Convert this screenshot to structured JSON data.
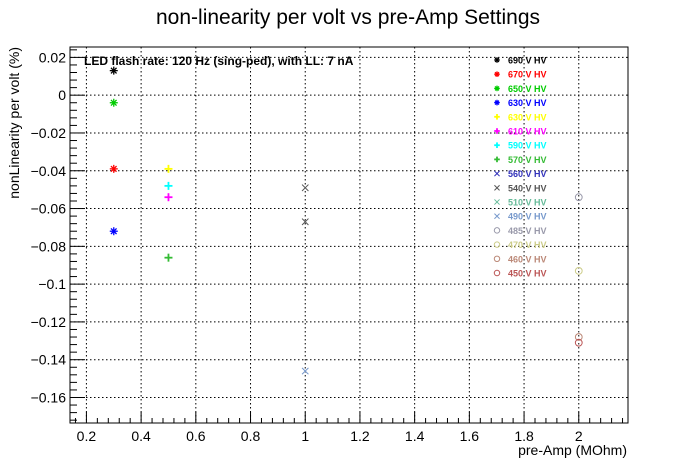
{
  "chart_data": {
    "type": "scatter",
    "title": "non-linearity per volt vs pre-Amp Settings",
    "xlabel": "pre-Amp (MOhm)",
    "ylabel": "nonLinearity per volt (%)",
    "xlim": [
      0.14,
      2.18
    ],
    "ylim": [
      -0.1735,
      0.0255
    ],
    "x_ticks": [
      0.2,
      0.4,
      0.6,
      0.8,
      1,
      1.2,
      1.4,
      1.6,
      1.8,
      2
    ],
    "x_tick_labels": [
      "0.2",
      "0.4",
      "0.6",
      "0.8",
      "1",
      "1.2",
      "1.4",
      "1.6",
      "1.8",
      "2"
    ],
    "y_ticks": [
      0.02,
      0,
      -0.02,
      -0.04,
      -0.06,
      -0.08,
      -0.1,
      -0.12,
      -0.14,
      -0.16
    ],
    "y_tick_labels": [
      "0.02",
      "0",
      "−0.02",
      "−0.04",
      "−0.06",
      "−0.08",
      "−0.1",
      "−0.12",
      "−0.14",
      "−0.16"
    ],
    "grid": true,
    "annotation": "LED flash rate: 120 Hz  (sing-ped), with LL: 7 nA",
    "legend_position": "top-right",
    "series": [
      {
        "name": "690 V HV",
        "color": "#000000",
        "marker": "star",
        "points": [
          [
            0.3,
            0.013
          ]
        ]
      },
      {
        "name": "670 V HV",
        "color": "#ff0000",
        "marker": "star",
        "points": [
          [
            0.3,
            -0.039
          ]
        ]
      },
      {
        "name": "650 V HV",
        "color": "#00cc00",
        "marker": "star",
        "points": [
          [
            0.3,
            -0.004
          ]
        ]
      },
      {
        "name": "630 V HV",
        "color": "#0000ff",
        "marker": "star",
        "points": [
          [
            0.3,
            -0.072
          ]
        ]
      },
      {
        "name": "630 V HV",
        "color": "#ffff00",
        "marker": "plus",
        "points": [
          [
            0.5,
            -0.039
          ]
        ]
      },
      {
        "name": "610 V HV",
        "color": "#ff00ff",
        "marker": "plus",
        "points": [
          [
            0.5,
            -0.054
          ]
        ]
      },
      {
        "name": "590 V HV",
        "color": "#00ffff",
        "marker": "plus",
        "points": [
          [
            0.5,
            -0.048
          ]
        ]
      },
      {
        "name": "570 V HV",
        "color": "#33bb33",
        "marker": "plus",
        "points": [
          [
            0.5,
            -0.086
          ]
        ]
      },
      {
        "name": "560 V HV",
        "color": "#3333bb",
        "marker": "cross",
        "points": []
      },
      {
        "name": "540 V HV",
        "color": "#555555",
        "marker": "cross",
        "points": [
          [
            1.0,
            -0.049
          ],
          [
            1.0,
            -0.067
          ]
        ]
      },
      {
        "name": "510 V HV",
        "color": "#66bb99",
        "marker": "cross",
        "points": []
      },
      {
        "name": "490 V HV",
        "color": "#7799cc",
        "marker": "cross",
        "points": [
          [
            1.0,
            -0.146
          ]
        ]
      },
      {
        "name": "485 V HV",
        "color": "#9999aa",
        "marker": "circle",
        "points": [
          [
            2.0,
            -0.054
          ]
        ]
      },
      {
        "name": "470 V HV",
        "color": "#cccc88",
        "marker": "circle",
        "points": [
          [
            2.0,
            -0.093
          ]
        ]
      },
      {
        "name": "460 V HV",
        "color": "#bb8877",
        "marker": "circle",
        "points": [
          [
            2.0,
            -0.128
          ]
        ]
      },
      {
        "name": "450 V HV",
        "color": "#bb5555",
        "marker": "circle",
        "points": [
          [
            2.0,
            -0.131
          ]
        ]
      }
    ]
  }
}
